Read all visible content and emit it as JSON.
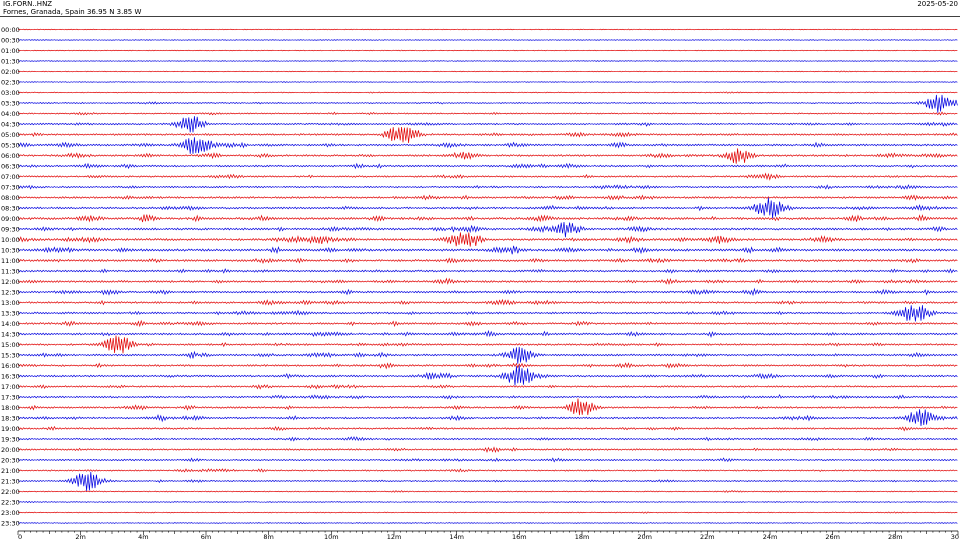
{
  "header": {
    "station": "IG.FORN..HNZ",
    "location": "Fornes, Granada, Spain  36.95 N 3.85 W",
    "date": "2025-05-20"
  },
  "chart_data": {
    "type": "line",
    "title": "IG.FORN..HNZ",
    "subtitle": "Fornes, Granada, Spain  36.95 N 3.85 W",
    "date": "2025-05-20",
    "rows": [
      "00:00",
      "00:30",
      "01:00",
      "01:30",
      "02:00",
      "02:30",
      "03:00",
      "03:30",
      "04:00",
      "04:30",
      "05:00",
      "05:30",
      "06:00",
      "06:30",
      "07:00",
      "07:30",
      "08:00",
      "08:30",
      "09:00",
      "09:30",
      "10:00",
      "10:30",
      "11:00",
      "11:30",
      "12:00",
      "12:30",
      "13:00",
      "13:30",
      "14:00",
      "14:30",
      "15:00",
      "15:30",
      "16:00",
      "16:30",
      "17:00",
      "17:30",
      "18:00",
      "18:30",
      "19:00",
      "19:30",
      "20:00",
      "20:30",
      "21:00",
      "21:30",
      "22:00",
      "22:30",
      "23:00",
      "23:30"
    ],
    "row_colors": [
      "#e00000",
      "#0000e0"
    ],
    "x_ticks": [
      "0",
      "2m",
      "4m",
      "6m",
      "8m",
      "10m",
      "12m",
      "14m",
      "16m",
      "18m",
      "20m",
      "22m",
      "24m",
      "26m",
      "28m",
      "30"
    ],
    "xlim": [
      0,
      30
    ],
    "activity": [
      0.05,
      0.05,
      0.05,
      0.05,
      0.05,
      0.05,
      0.12,
      0.25,
      0.3,
      0.45,
      0.55,
      0.6,
      0.6,
      0.55,
      0.5,
      0.45,
      0.6,
      0.6,
      0.75,
      0.7,
      0.75,
      0.8,
      0.7,
      0.6,
      0.65,
      0.6,
      0.6,
      0.55,
      0.6,
      0.65,
      0.55,
      0.6,
      0.55,
      0.6,
      0.5,
      0.55,
      0.55,
      0.55,
      0.5,
      0.5,
      0.45,
      0.4,
      0.35,
      0.3,
      0.2,
      0.12,
      0.12,
      0.1
    ],
    "events": [
      {
        "row": 7,
        "x": 29.4,
        "amp": 0.9
      },
      {
        "row": 9,
        "x": 5.5,
        "amp": 0.8
      },
      {
        "row": 10,
        "x": 12.3,
        "amp": 1.0
      },
      {
        "row": 11,
        "x": 5.7,
        "amp": 1.0
      },
      {
        "row": 12,
        "x": 23.0,
        "amp": 0.7
      },
      {
        "row": 17,
        "x": 24.0,
        "amp": 1.0
      },
      {
        "row": 19,
        "x": 17.5,
        "amp": 0.7
      },
      {
        "row": 20,
        "x": 14.3,
        "amp": 0.9
      },
      {
        "row": 27,
        "x": 28.6,
        "amp": 1.0
      },
      {
        "row": 30,
        "x": 3.2,
        "amp": 0.9
      },
      {
        "row": 31,
        "x": 16.0,
        "amp": 0.8
      },
      {
        "row": 33,
        "x": 16.0,
        "amp": 1.0
      },
      {
        "row": 36,
        "x": 18.0,
        "amp": 0.7
      },
      {
        "row": 37,
        "x": 28.8,
        "amp": 0.8
      },
      {
        "row": 43,
        "x": 2.2,
        "amp": 1.0
      }
    ]
  }
}
